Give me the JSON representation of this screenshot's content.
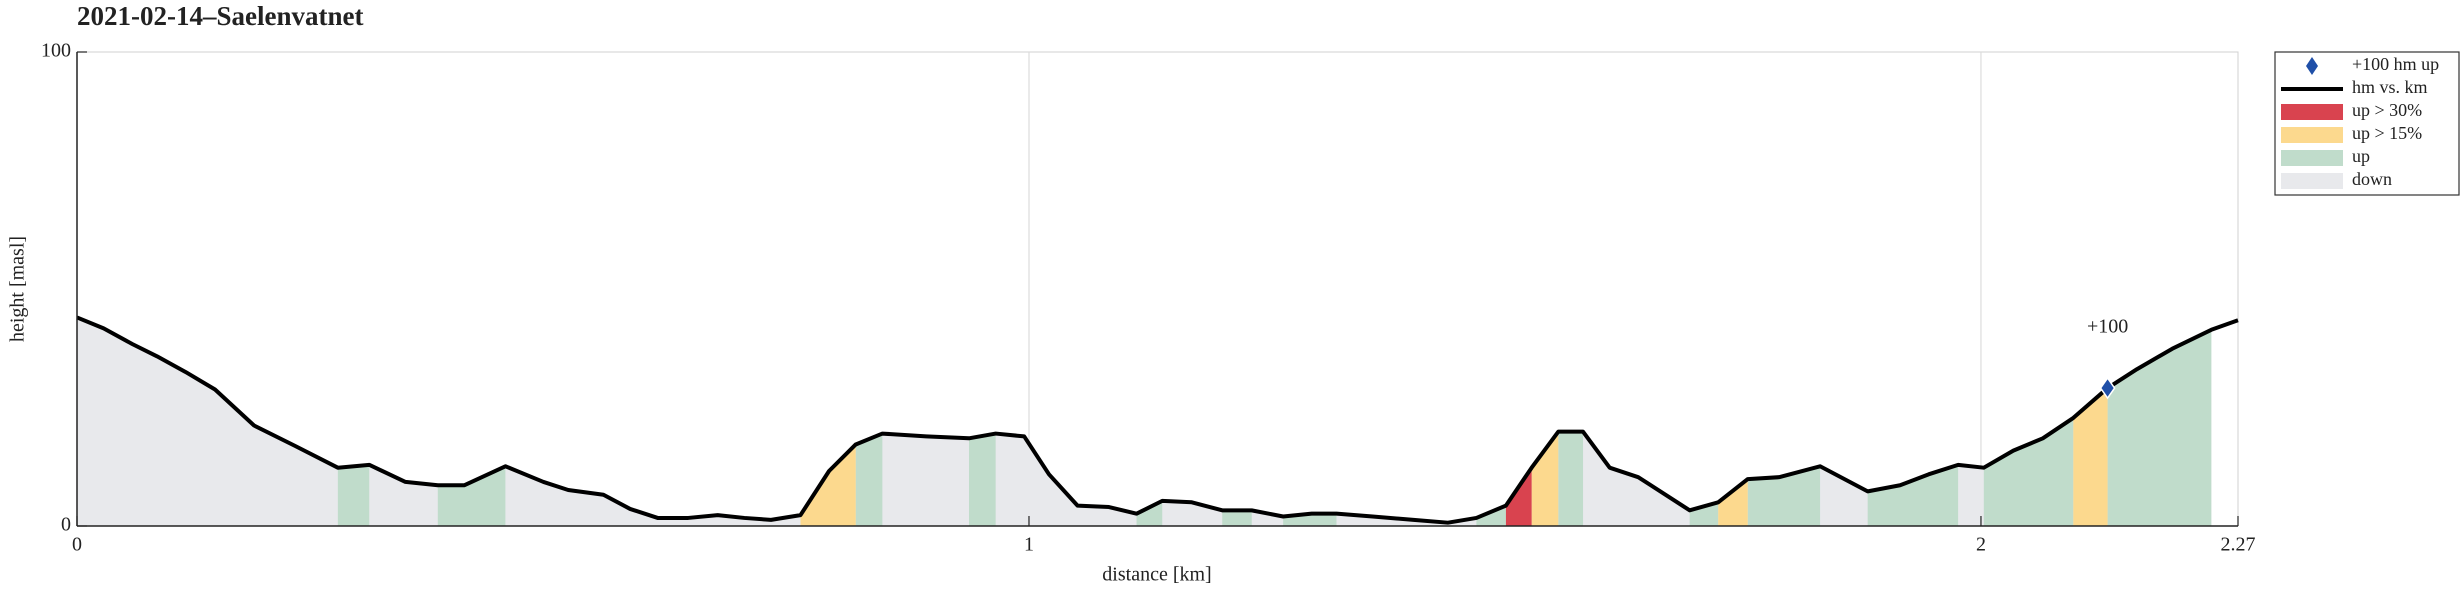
{
  "chart_data": {
    "type": "area",
    "title": "2021-02-14–Saelenvatnet",
    "xlabel": "distance [km]",
    "ylabel": "height [masl]",
    "x": [
      0,
      0.028,
      0.058,
      0.084,
      0.114,
      0.145,
      0.186,
      0.229,
      0.274,
      0.307,
      0.345,
      0.379,
      0.407,
      0.45,
      0.49,
      0.516,
      0.553,
      0.581,
      0.61,
      0.642,
      0.673,
      0.701,
      0.729,
      0.76,
      0.79,
      0.818,
      0.846,
      0.892,
      0.937,
      0.965,
      0.995,
      1.021,
      1.051,
      1.084,
      1.113,
      1.14,
      1.171,
      1.203,
      1.234,
      1.267,
      1.297,
      1.323,
      1.361,
      1.404,
      1.44,
      1.47,
      1.501,
      1.528,
      1.556,
      1.582,
      1.61,
      1.64,
      1.694,
      1.724,
      1.755,
      1.788,
      1.831,
      1.881,
      1.915,
      1.945,
      1.976,
      2.003,
      2.034,
      2.065,
      2.097,
      2.133,
      2.164,
      2.201,
      2.242,
      2.27
    ],
    "values": [
      44,
      41.7,
      38.4,
      35.8,
      32.5,
      28.8,
      21.2,
      16.9,
      12.3,
      12.9,
      9.3,
      8.6,
      8.6,
      12.6,
      9.3,
      7.6,
      6.6,
      3.6,
      1.7,
      1.7,
      2.3,
      1.7,
      1.3,
      2.3,
      11.6,
      17.2,
      19.5,
      18.9,
      18.5,
      19.5,
      18.9,
      10.9,
      4.3,
      4.0,
      2.6,
      5.3,
      5.0,
      3.3,
      3.3,
      2.0,
      2.6,
      2.6,
      2.0,
      1.3,
      0.7,
      1.7,
      4.3,
      12.3,
      19.9,
      19.9,
      12.3,
      10.3,
      3.3,
      5.0,
      9.9,
      10.3,
      12.6,
      7.3,
      8.6,
      10.9,
      12.9,
      12.3,
      15.9,
      18.5,
      22.8,
      29.1,
      33.1,
      37.4,
      41.4,
      43.4
    ],
    "line_name": "hm vs. km",
    "line_color": "#000000",
    "fills": [
      {
        "name": "down",
        "color": "#e8e9ec",
        "intervals": [
          [
            0,
            2.242
          ]
        ]
      },
      {
        "name": "up",
        "color": "#c0dccb",
        "intervals": [
          [
            0.274,
            0.307
          ],
          [
            0.379,
            0.45
          ],
          [
            0.818,
            0.846
          ],
          [
            0.937,
            0.965
          ],
          [
            1.113,
            1.14
          ],
          [
            1.203,
            1.234
          ],
          [
            1.267,
            1.323
          ],
          [
            1.47,
            1.501
          ],
          [
            1.556,
            1.582
          ],
          [
            1.694,
            1.724
          ],
          [
            1.755,
            1.831
          ],
          [
            1.881,
            1.976
          ],
          [
            2.003,
            2.097
          ],
          [
            2.133,
            2.242
          ]
        ]
      },
      {
        "name": "up > 15%",
        "color": "#fcd98e",
        "intervals": [
          [
            0.76,
            0.818
          ],
          [
            1.528,
            1.556
          ],
          [
            1.724,
            1.755
          ],
          [
            2.097,
            2.133
          ]
        ]
      },
      {
        "name": "up > 30%",
        "color": "#d9434f",
        "intervals": [
          [
            1.501,
            1.528
          ]
        ]
      }
    ],
    "marker": {
      "name": "+100 hm up",
      "label": "+100",
      "x": 2.133,
      "y": 29.1,
      "color": "#1f4fa8"
    },
    "xlim": [
      0,
      2.27
    ],
    "xticks": [
      0,
      1,
      2,
      2.27
    ],
    "ylim": [
      0,
      100
    ],
    "yticks": [
      0,
      100
    ],
    "grid": "x"
  }
}
